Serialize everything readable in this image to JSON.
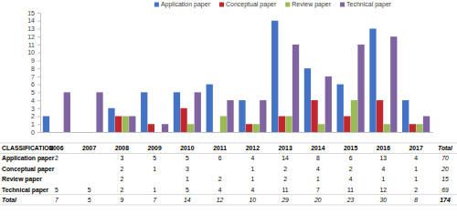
{
  "chart_data": {
    "type": "bar",
    "categories": [
      "2006",
      "2007",
      "2008",
      "2009",
      "2010",
      "2011",
      "2012",
      "2013",
      "2014",
      "2015",
      "2016",
      "2017"
    ],
    "series": [
      {
        "name": "Application paper",
        "color": "#4472c4",
        "values": [
          2,
          null,
          3,
          5,
          5,
          6,
          4,
          14,
          8,
          6,
          13,
          4
        ]
      },
      {
        "name": "Conceptual paper",
        "color": "#c0282d",
        "values": [
          null,
          null,
          2,
          1,
          3,
          null,
          1,
          2,
          4,
          2,
          4,
          1
        ]
      },
      {
        "name": "Review paper",
        "color": "#9bbb59",
        "values": [
          null,
          null,
          2,
          null,
          1,
          2,
          1,
          2,
          1,
          4,
          1,
          1
        ]
      },
      {
        "name": "Technical paper",
        "color": "#8064a2",
        "values": [
          5,
          5,
          2,
          1,
          5,
          4,
          4,
          11,
          7,
          11,
          12,
          2
        ]
      }
    ],
    "ylim": [
      0,
      15
    ],
    "yticks": [
      0,
      1,
      2,
      3,
      4,
      5,
      6,
      7,
      8,
      9,
      10,
      11,
      12,
      13,
      14,
      15
    ],
    "grid": false,
    "legend": "top",
    "table": {
      "header": "CLASSIFICATION",
      "total_label": "Total",
      "row_totals": [
        70,
        20,
        15,
        69
      ],
      "column_totals": [
        7,
        5,
        9,
        7,
        14,
        12,
        10,
        29,
        20,
        23,
        30,
        8
      ],
      "grand_total": 174
    }
  }
}
